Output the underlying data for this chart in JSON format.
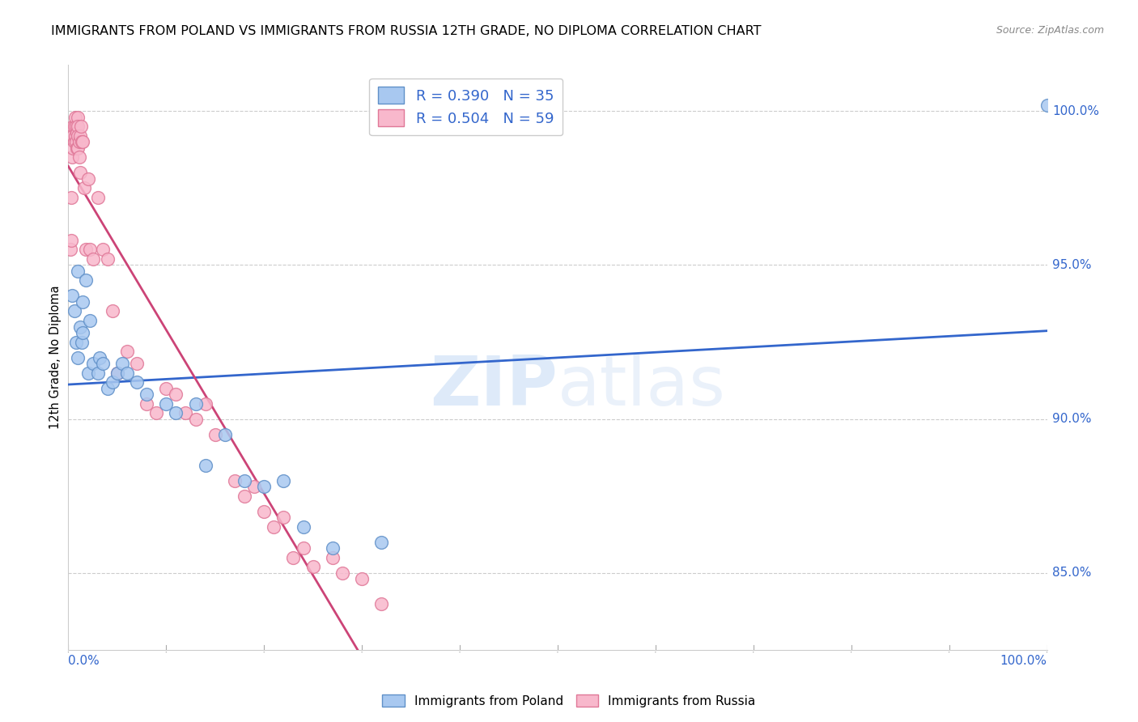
{
  "title": "IMMIGRANTS FROM POLAND VS IMMIGRANTS FROM RUSSIA 12TH GRADE, NO DIPLOMA CORRELATION CHART",
  "source": "Source: ZipAtlas.com",
  "ylabel": "12th Grade, No Diploma",
  "ytick_values": [
    85.0,
    90.0,
    95.0,
    100.0
  ],
  "xmin": 0.0,
  "xmax": 100.0,
  "ymin": 82.5,
  "ymax": 101.5,
  "watermark_zip": "ZIP",
  "watermark_atlas": "atlas",
  "poland_color": "#a8c8f0",
  "russia_color": "#f8b8cc",
  "poland_edge": "#6090c8",
  "russia_edge": "#e07898",
  "poland_line_color": "#3366cc",
  "russia_line_color": "#cc4477",
  "poland_R": 0.39,
  "poland_N": 35,
  "russia_R": 0.504,
  "russia_N": 59,
  "poland_points_x": [
    0.4,
    0.6,
    0.8,
    1.0,
    1.0,
    1.2,
    1.4,
    1.5,
    1.5,
    1.8,
    2.0,
    2.2,
    2.5,
    3.0,
    3.2,
    3.5,
    4.0,
    4.5,
    5.0,
    5.5,
    6.0,
    7.0,
    8.0,
    10.0,
    11.0,
    13.0,
    14.0,
    16.0,
    18.0,
    20.0,
    22.0,
    24.0,
    27.0,
    32.0,
    100.0
  ],
  "poland_points_y": [
    94.0,
    93.5,
    92.5,
    94.8,
    92.0,
    93.0,
    92.5,
    93.8,
    92.8,
    94.5,
    91.5,
    93.2,
    91.8,
    91.5,
    92.0,
    91.8,
    91.0,
    91.2,
    91.5,
    91.8,
    91.5,
    91.2,
    90.8,
    90.5,
    90.2,
    90.5,
    88.5,
    89.5,
    88.0,
    87.8,
    88.0,
    86.5,
    85.8,
    86.0,
    100.2
  ],
  "russia_points_x": [
    0.2,
    0.3,
    0.3,
    0.4,
    0.5,
    0.5,
    0.5,
    0.6,
    0.6,
    0.7,
    0.7,
    0.8,
    0.8,
    0.9,
    0.9,
    1.0,
    1.0,
    1.0,
    1.0,
    1.1,
    1.1,
    1.2,
    1.2,
    1.3,
    1.4,
    1.5,
    1.6,
    1.8,
    2.0,
    2.2,
    2.5,
    3.0,
    3.5,
    4.0,
    4.5,
    5.0,
    6.0,
    7.0,
    8.0,
    9.0,
    10.0,
    11.0,
    12.0,
    13.0,
    14.0,
    15.0,
    17.0,
    18.0,
    19.0,
    20.0,
    21.0,
    22.0,
    23.0,
    24.0,
    25.0,
    27.0,
    28.0,
    30.0,
    32.0
  ],
  "russia_points_y": [
    95.5,
    97.2,
    95.8,
    98.5,
    99.5,
    99.2,
    98.8,
    99.5,
    99.0,
    99.8,
    99.2,
    99.5,
    99.0,
    99.3,
    98.8,
    99.8,
    99.5,
    99.2,
    98.8,
    99.0,
    98.5,
    99.2,
    98.0,
    99.5,
    99.0,
    99.0,
    97.5,
    95.5,
    97.8,
    95.5,
    95.2,
    97.2,
    95.5,
    95.2,
    93.5,
    91.5,
    92.2,
    91.8,
    90.5,
    90.2,
    91.0,
    90.8,
    90.2,
    90.0,
    90.5,
    89.5,
    88.0,
    87.5,
    87.8,
    87.0,
    86.5,
    86.8,
    85.5,
    85.8,
    85.2,
    85.5,
    85.0,
    84.8,
    84.0
  ]
}
